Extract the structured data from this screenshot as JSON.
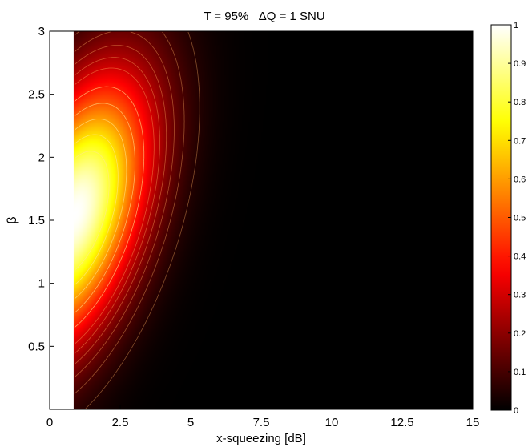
{
  "chart_data": {
    "type": "heatmap",
    "title": "T = 95%   ΔQ = 1 SNU",
    "xlabel": "x-squeezing [dB]",
    "ylabel": "β",
    "xlim": [
      0,
      15
    ],
    "ylim": [
      0,
      3
    ],
    "x_ticks": [
      "0",
      "2.5",
      "5",
      "7.5",
      "10",
      "12.5",
      "15"
    ],
    "y_ticks": [
      "0.5",
      "1",
      "1.5",
      "2",
      "2.5",
      "3"
    ],
    "x_tick_values": [
      0,
      2.5,
      5,
      7.5,
      10,
      12.5,
      15
    ],
    "y_tick_values": [
      0.5,
      1,
      1.5,
      2,
      2.5,
      3
    ],
    "data_x_range": [
      0.85,
      15
    ],
    "data_y_range": [
      0,
      3
    ],
    "peak": {
      "x": 0.9,
      "y": 1.55,
      "value": 1.0
    },
    "colorbar": {
      "colormap": "hot",
      "range": [
        0,
        1
      ],
      "ticks": [
        "0",
        "0.1",
        "0.2",
        "0.3",
        "0.4",
        "0.5",
        "0.6",
        "0.7",
        "0.8",
        "0.9",
        "1"
      ]
    },
    "contours": true,
    "grid": false,
    "legend": "none"
  }
}
